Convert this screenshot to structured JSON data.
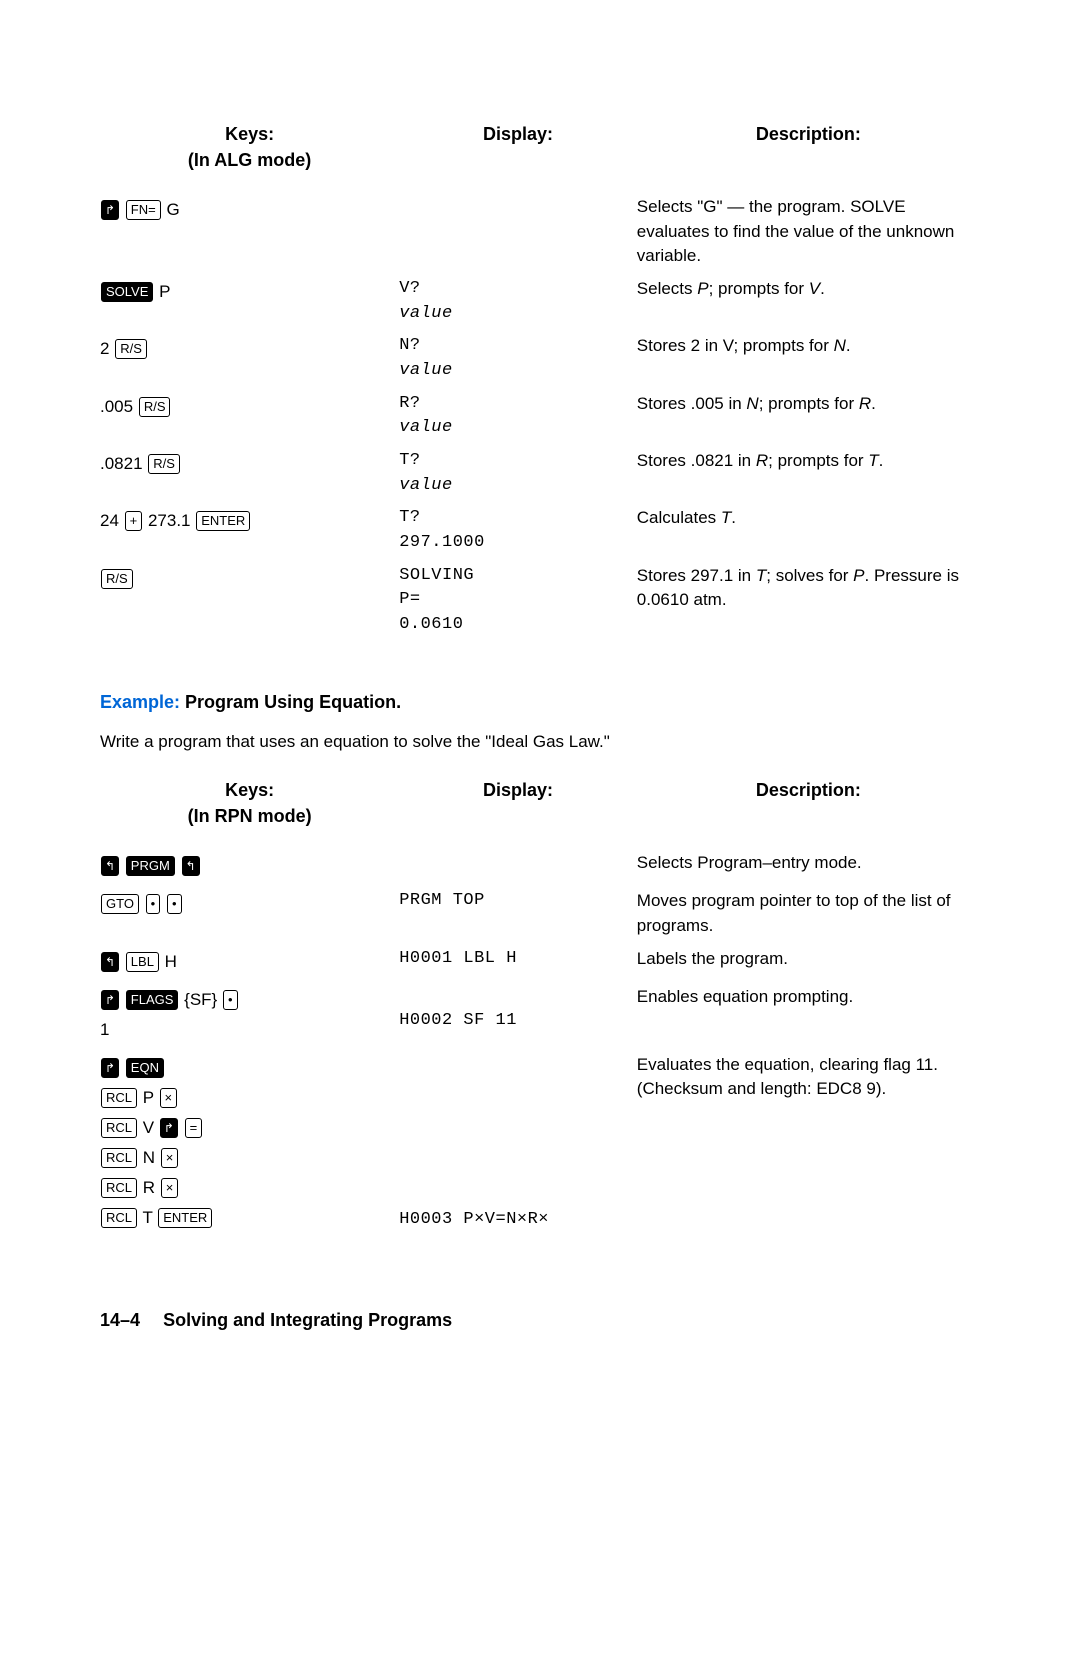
{
  "table1": {
    "head": {
      "keys": "Keys:",
      "mode": "(In ALG mode)",
      "display": "Display:",
      "desc": "Description:"
    },
    "rows": [
      {
        "keys_suffix": " G",
        "display": [
          "",
          ""
        ],
        "desc": "Selects \"G\" — the program. SOLVE evaluates to find the value of the unknown variable."
      },
      {
        "keys_suffix": " P",
        "display": [
          "V?",
          "value"
        ],
        "desc_html": "Selects <i>P</i>; prompts for <i>V</i>."
      },
      {
        "keys_prefix": "2 ",
        "display": [
          "N?",
          "value"
        ],
        "desc_html": "Stores 2 in V; prompts for <i>N</i>."
      },
      {
        "keys_prefix": ".005 ",
        "display": [
          "R?",
          "value"
        ],
        "desc_html": "Stores .005 in <i>N</i>; prompts for <i>R</i>."
      },
      {
        "keys_prefix": ".0821 ",
        "display": [
          "T?",
          "value"
        ],
        "desc_html": "Stores .0821 in <i>R</i>; prompts for <i>T</i>."
      },
      {
        "keys_prefix": "24 ",
        "keys_mid": " 273.1 ",
        "display": [
          "T?",
          "297.1000"
        ],
        "desc_html": "Calculates <i>T</i>."
      },
      {
        "display": [
          "SOLVING",
          "P=",
          "0.0610"
        ],
        "desc_html": "Stores 297.1 in <i>T</i>; solves for <i>P</i>. Pressure is 0.0610 atm."
      }
    ]
  },
  "example": {
    "label": "Example:",
    "title": " Program Using Equation."
  },
  "bodytext": "Write a program that uses an equation to solve the \"Ideal Gas Law.\"",
  "table2": {
    "head": {
      "keys": "Keys:",
      "mode": "(In RPN mode)",
      "display": "Display:",
      "desc": "Description:"
    },
    "rows": [
      {
        "display": "",
        "desc": "Selects Program–entry mode."
      },
      {
        "display": "PRGM TOP",
        "desc": "Moves program pointer to top of the list of programs."
      },
      {
        "keys_suffix": " H",
        "display": "H0001 LBL H",
        "desc": "Labels the program."
      },
      {
        "keys_mid": " {SF} ",
        "keys_suffix2": "1",
        "display2": "H0002 SF 11",
        "desc": "Enables equation prompting."
      },
      {
        "rcl_letters": [
          "P",
          "V",
          "N",
          "R",
          "T"
        ],
        "display_last": "H0003 P×V=N×R×",
        "desc": "Evaluates the equation, clearing flag 11. (Checksum and length: EDC8   9)."
      }
    ]
  },
  "footer": {
    "page": "14–4",
    "title": "Solving and Integrating Programs"
  },
  "keys": {
    "shiftR": "↱",
    "shiftL": "↰",
    "fn": "FN=",
    "solve": "SOLVE",
    "rs": "R/S",
    "plus": "+",
    "enter": "ENTER",
    "prgm": "PRGM",
    "gto": "GTO",
    "dot": "•",
    "lbl": "LBL",
    "flags": "FLAGS",
    "eqn": "EQN",
    "rcl": "RCL",
    "times": "×",
    "eq": "="
  }
}
